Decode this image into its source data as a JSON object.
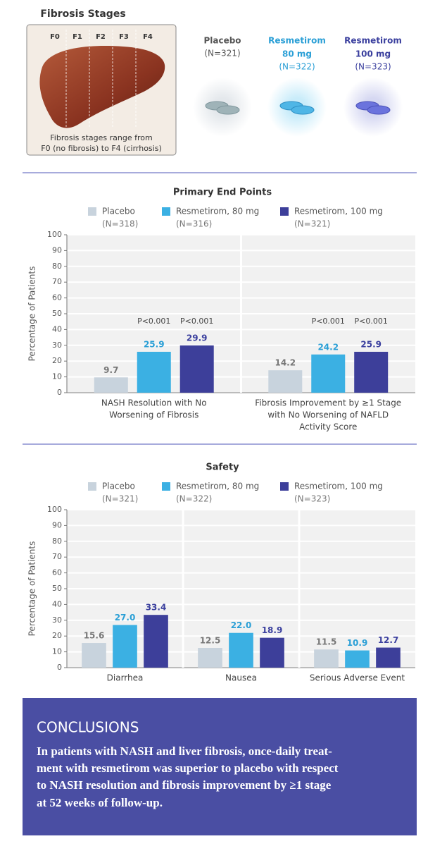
{
  "fibrosis": {
    "title": "Fibrosis Stages",
    "stages": [
      "F0",
      "F1",
      "F2",
      "F3",
      "F4"
    ],
    "caption": [
      "Fibrosis stages range from",
      "F0 (no fibrosis) to F4 (cirrhosis)"
    ]
  },
  "groups": [
    {
      "name": "Placebo",
      "n": "(N=321)",
      "color": "#555555"
    },
    {
      "name": "Resmetirom",
      "dose": "80 mg",
      "n": "(N=322)",
      "color": "#2a9fd6"
    },
    {
      "name": "Resmetirom",
      "dose": "100 mg",
      "n": "(N=323)",
      "color": "#3a3f9e"
    }
  ],
  "chart_data": [
    {
      "type": "bar",
      "title": "Primary End Points",
      "y_label": "Percentage of Patients",
      "categories": [
        [
          "NASH Resolution with No",
          "Worsening of Fibrosis"
        ],
        [
          "Fibrosis Improvement by ≥1 Stage",
          "with No Worsening of NAFLD",
          "Activity Score"
        ]
      ],
      "series": [
        {
          "name": "Placebo",
          "n": "(N=318)",
          "color": "#c8d3dd",
          "label_color": "#777777",
          "values": [
            9.7,
            14.2
          ],
          "value_labels": [
            "9.7",
            "14.2"
          ]
        },
        {
          "name": "Resmetirom, 80 mg",
          "n": "(N=316)",
          "color": "#3bb0e3",
          "label_color": "#2a9fd6",
          "values": [
            25.9,
            24.2
          ],
          "value_labels": [
            "25.9",
            "24.2"
          ],
          "p_values": [
            "P<0.001",
            "P<0.001"
          ]
        },
        {
          "name": "Resmetirom, 100 mg",
          "n": "(N=321)",
          "color": "#3d3f9a",
          "label_color": "#3a3f9e",
          "values": [
            29.9,
            25.9
          ],
          "value_labels": [
            "29.9",
            "25.9"
          ],
          "p_values": [
            "P<0.001",
            "P<0.001"
          ]
        }
      ],
      "ylim": [
        0,
        100
      ],
      "yticks": [
        0,
        10,
        20,
        30,
        40,
        50,
        60,
        70,
        80,
        90,
        100
      ],
      "grid": true
    },
    {
      "type": "bar",
      "title": "Safety",
      "y_label": "Percentage of Patients",
      "categories": [
        [
          "Diarrhea"
        ],
        [
          "Nausea"
        ],
        [
          "Serious Adverse Event"
        ]
      ],
      "series": [
        {
          "name": "Placebo",
          "n": "(N=321)",
          "color": "#c8d3dd",
          "label_color": "#777777",
          "values": [
            15.6,
            12.5,
            11.5
          ],
          "value_labels": [
            "15.6",
            "12.5",
            "11.5"
          ]
        },
        {
          "name": "Resmetirom, 80 mg",
          "n": "(N=322)",
          "color": "#3bb0e3",
          "label_color": "#2a9fd6",
          "values": [
            27,
            22,
            10.9
          ],
          "value_labels": [
            "27.0",
            "22.0",
            "10.9"
          ]
        },
        {
          "name": "Resmetirom, 100 mg",
          "n": "(N=323)",
          "color": "#3d3f9a",
          "label_color": "#3a3f9e",
          "values": [
            33.4,
            18.9,
            12.7
          ],
          "value_labels": [
            "33.4",
            "18.9",
            "12.7"
          ]
        }
      ],
      "ylim": [
        0,
        100
      ],
      "yticks": [
        0,
        10,
        20,
        30,
        40,
        50,
        60,
        70,
        80,
        90,
        100
      ],
      "grid": true
    }
  ],
  "conclusions": {
    "title": "CONCLUSIONS",
    "text": [
      "In patients with NASH and liver fibrosis, once-daily treat-",
      "ment with resmetirom was superior to placebo with respect",
      "to NASH resolution and fibrosis improvement by ≥1 stage",
      "at 52 weeks of follow-up."
    ]
  }
}
